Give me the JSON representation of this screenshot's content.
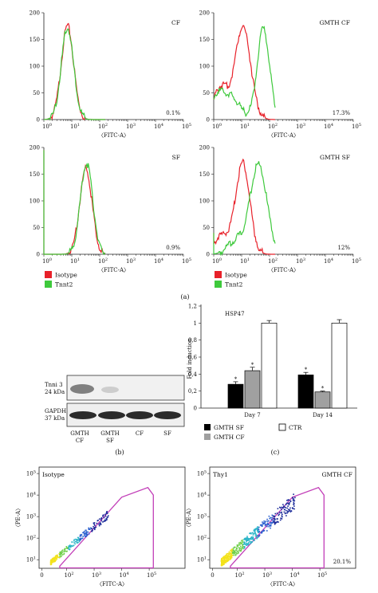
{
  "colors": {
    "isotype": "#e8212a",
    "tnnt2": "#3ec93c",
    "gate": "#c23fb8",
    "bar_black": "#000000",
    "bar_gray": "#a0a0a0",
    "bar_white": "#ffffff"
  },
  "panel_a": {
    "caption": "(a)",
    "legend": [
      "Isotype",
      "Tnnt2"
    ],
    "y_ticks": [
      "0",
      "50",
      "100",
      "150",
      "200"
    ],
    "x_axis_label": "〈FITC-A〉",
    "plots": [
      {
        "label": "CF",
        "percent": "0.1%"
      },
      {
        "label": "GMTH CF",
        "percent": "17.3%"
      },
      {
        "label": "SF",
        "percent": "0.9%"
      },
      {
        "label": "GMTH SF",
        "percent": "12%"
      }
    ]
  },
  "panel_b": {
    "caption": "(b)",
    "bands": [
      {
        "name": "Tnni 3",
        "size": "24 kDa"
      },
      {
        "name": "GAPDH",
        "size": "37 kDa"
      }
    ],
    "lanes": [
      [
        "GMTH",
        "CF"
      ],
      [
        "GMTH",
        "SF"
      ],
      [
        "CF"
      ],
      [
        "SF"
      ]
    ]
  },
  "panel_c": {
    "caption": "(c)",
    "title": "HSP47",
    "ylabel": "Fold induction",
    "y_ticks": [
      "0",
      "0,2",
      "0,4",
      "0,6",
      "0,8",
      "1",
      "1,2"
    ],
    "legend": [
      "GMTH SF",
      "GMTH CF",
      "CTR"
    ],
    "star": "*"
  },
  "panel_d": {
    "ylabel": "〈PE-A〉",
    "xlabel": "〈FITC-A〉",
    "plots": [
      {
        "left_label": "Isotype",
        "right_label": "",
        "percent": ""
      },
      {
        "left_label": "Thy1",
        "right_label": "GMTH CF",
        "percent": "20.1%"
      }
    ]
  },
  "chart_data": [
    {
      "type": "line",
      "title": "CF",
      "xlabel": "〈FITC-A〉",
      "xscale": "log",
      "xlim": [
        1,
        100000
      ],
      "ylim": [
        0,
        200
      ],
      "series": [
        {
          "name": "Isotype",
          "peak_x": 7,
          "peak_y": 175
        },
        {
          "name": "Tnnt2",
          "peak_x": 7,
          "peak_y": 172
        }
      ],
      "annotation": "0.1%"
    },
    {
      "type": "line",
      "title": "GMTH CF",
      "xlabel": "〈FITC-A〉",
      "xscale": "log",
      "xlim": [
        1,
        100000
      ],
      "ylim": [
        0,
        200
      ],
      "series": [
        {
          "name": "Isotype",
          "peak_x": 11,
          "peak_y": 175
        },
        {
          "name": "Tnnt2",
          "peak_x": 60,
          "peak_y": 170
        }
      ],
      "annotation": "17.3%"
    },
    {
      "type": "line",
      "title": "SF",
      "xlabel": "〈FITC-A〉",
      "xscale": "log",
      "xlim": [
        1,
        100000
      ],
      "ylim": [
        0,
        200
      ],
      "series": [
        {
          "name": "Isotype",
          "peak_x": 32,
          "peak_y": 160
        },
        {
          "name": "Tnnt2",
          "peak_x": 34,
          "peak_y": 170
        }
      ],
      "annotation": "0.9%"
    },
    {
      "type": "line",
      "title": "GMTH SF",
      "xlabel": "〈FITC-A〉",
      "xscale": "log",
      "xlim": [
        1,
        100000
      ],
      "ylim": [
        0,
        200
      ],
      "series": [
        {
          "name": "Isotype",
          "peak_x": 11,
          "peak_y": 170
        },
        {
          "name": "Tnnt2",
          "peak_x": 40,
          "peak_y": 168
        }
      ],
      "annotation": "12%"
    },
    {
      "type": "bar",
      "title": "HSP47",
      "ylabel": "Fold induction",
      "ylim": [
        0,
        1.2
      ],
      "categories": [
        "Day 7",
        "Day 14"
      ],
      "series": [
        {
          "name": "GMTH SF",
          "values": [
            0.28,
            0.39
          ],
          "errors": [
            0.03,
            0.03
          ]
        },
        {
          "name": "GMTH CF",
          "values": [
            0.44,
            0.19
          ],
          "errors": [
            0.04,
            0.01
          ]
        },
        {
          "name": "CTR",
          "values": [
            1.0,
            1.0
          ],
          "errors": [
            0.03,
            0.04
          ]
        }
      ]
    },
    {
      "type": "scatter",
      "title": "Isotype",
      "xlabel": "〈FITC-A〉",
      "ylabel": "〈PE-A〉",
      "xscale": "log",
      "yscale": "log"
    },
    {
      "type": "scatter",
      "title": "Thy1 GMTH CF",
      "xlabel": "〈FITC-A〉",
      "ylabel": "〈PE-A〉",
      "xscale": "log",
      "yscale": "log",
      "annotation": "20.1%"
    }
  ]
}
